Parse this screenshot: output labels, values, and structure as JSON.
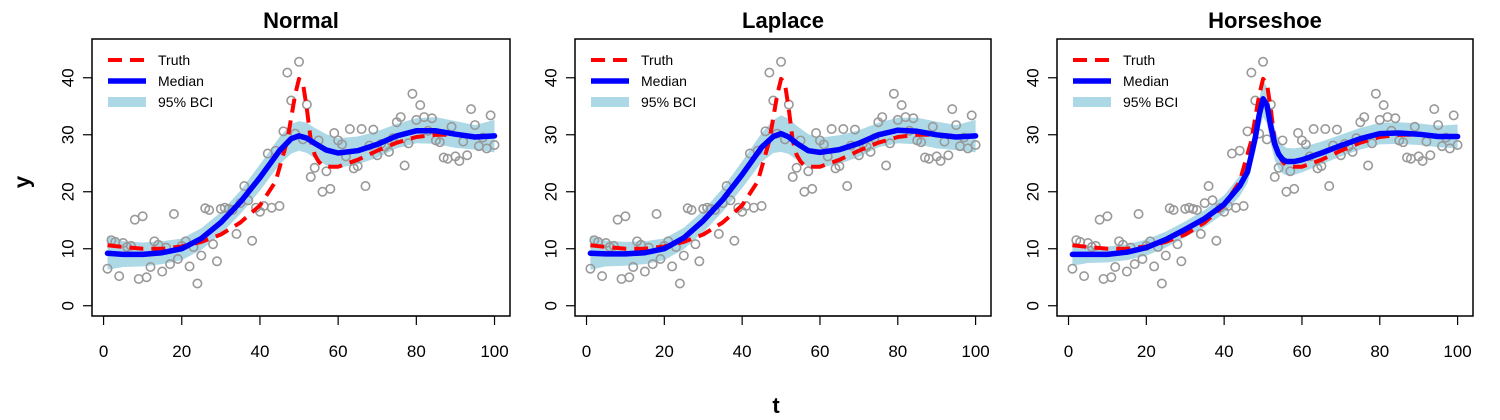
{
  "figure": {
    "xlabel": "t",
    "ylabel": "y",
    "colors": {
      "truth": "#ff0000",
      "median": "#0000ff",
      "band": "#add8e6",
      "points": "#999999",
      "axis": "#000000"
    }
  },
  "chart_data": [
    {
      "type": "line",
      "title": "Normal",
      "xlim": [
        1,
        100
      ],
      "ylim": [
        0,
        45
      ],
      "x_ticks": [
        0,
        20,
        40,
        60,
        80,
        100
      ],
      "y_ticks": [
        0,
        10,
        20,
        30,
        40
      ],
      "legend": {
        "placement": "top-left",
        "entries": [
          "Truth",
          "Median",
          "95% BCI"
        ]
      },
      "truth": {
        "t": [
          1,
          5,
          10,
          15,
          20,
          25,
          30,
          35,
          40,
          44,
          47,
          48,
          49,
          50,
          51,
          52,
          53,
          54,
          55,
          56,
          58,
          60,
          65,
          70,
          75,
          80,
          85,
          90,
          95,
          100
        ],
        "y": [
          10.6,
          10.3,
          10.0,
          10.0,
          10.4,
          11.2,
          12.5,
          14.6,
          17.6,
          21.8,
          29,
          33,
          37,
          39.8,
          39,
          34.5,
          29,
          26.5,
          25.3,
          24.6,
          24.4,
          24.4,
          25.6,
          27.2,
          28.6,
          29.6,
          30.0,
          30.0,
          29.8,
          29.7
        ]
      },
      "median": {
        "t": [
          1,
          5,
          10,
          15,
          20,
          25,
          30,
          35,
          40,
          45,
          48,
          50,
          52,
          54,
          57,
          60,
          65,
          70,
          75,
          80,
          85,
          90,
          95,
          100
        ],
        "y": [
          9.2,
          9.0,
          9.0,
          9.3,
          10.0,
          11.8,
          14.6,
          18.2,
          22.5,
          27.2,
          29.3,
          29.8,
          29.4,
          28.5,
          27.3,
          26.8,
          27.2,
          28.3,
          29.8,
          30.7,
          30.7,
          30.1,
          29.6,
          29.8
        ]
      },
      "band_upper": {
        "t": [
          1,
          5,
          10,
          15,
          20,
          25,
          30,
          35,
          40,
          45,
          48,
          50,
          52,
          54,
          57,
          60,
          65,
          70,
          75,
          80,
          85,
          90,
          95,
          100
        ],
        "y": [
          12.3,
          11.3,
          11.1,
          11.3,
          11.8,
          13.6,
          16.4,
          20.2,
          24.8,
          29.6,
          31.9,
          32.4,
          32.1,
          31.2,
          30.1,
          29.4,
          29.7,
          30.6,
          31.9,
          32.9,
          33.1,
          32.4,
          31.7,
          32.6
        ]
      },
      "band_lower": {
        "t": [
          1,
          5,
          10,
          15,
          20,
          25,
          30,
          35,
          40,
          45,
          48,
          50,
          52,
          54,
          57,
          60,
          65,
          70,
          75,
          80,
          85,
          90,
          95,
          100
        ],
        "y": [
          6.3,
          6.8,
          6.9,
          7.3,
          8.0,
          9.8,
          12.6,
          16.1,
          20.2,
          24.8,
          26.7,
          27.2,
          26.8,
          25.9,
          24.6,
          24.2,
          24.8,
          26.0,
          27.6,
          28.5,
          28.4,
          27.7,
          27.4,
          26.9
        ]
      }
    },
    {
      "type": "line",
      "title": "Laplace",
      "xlim": [
        1,
        100
      ],
      "ylim": [
        0,
        45
      ],
      "x_ticks": [
        0,
        20,
        40,
        60,
        80,
        100
      ],
      "y_ticks": [
        0,
        10,
        20,
        30,
        40
      ],
      "legend": {
        "placement": "top-left",
        "entries": [
          "Truth",
          "Median",
          "95% BCI"
        ]
      },
      "truth": {
        "t": [
          1,
          5,
          10,
          15,
          20,
          25,
          30,
          35,
          40,
          44,
          47,
          48,
          49,
          50,
          51,
          52,
          53,
          54,
          55,
          56,
          58,
          60,
          65,
          70,
          75,
          80,
          85,
          90,
          95,
          100
        ],
        "y": [
          10.6,
          10.3,
          10.0,
          10.0,
          10.4,
          11.2,
          12.5,
          14.6,
          17.6,
          21.8,
          29,
          33,
          37,
          39.8,
          39,
          34.5,
          29,
          26.5,
          25.3,
          24.6,
          24.4,
          24.4,
          25.6,
          27.2,
          28.6,
          29.6,
          30.0,
          30.0,
          29.8,
          29.7
        ]
      },
      "median": {
        "t": [
          1,
          5,
          10,
          15,
          20,
          25,
          30,
          35,
          40,
          45,
          48,
          50,
          52,
          54,
          57,
          60,
          65,
          70,
          75,
          80,
          85,
          90,
          95,
          100
        ],
        "y": [
          9.2,
          9.1,
          9.1,
          9.3,
          10.0,
          11.9,
          14.9,
          18.6,
          23.0,
          27.8,
          29.7,
          30.2,
          29.6,
          28.5,
          27.2,
          26.9,
          27.4,
          28.5,
          30.0,
          30.8,
          30.6,
          30.0,
          29.6,
          29.8
        ]
      },
      "band_upper": {
        "t": [
          1,
          5,
          10,
          15,
          20,
          25,
          30,
          35,
          40,
          45,
          48,
          50,
          52,
          54,
          57,
          60,
          65,
          70,
          75,
          80,
          85,
          90,
          95,
          100
        ],
        "y": [
          12.3,
          11.4,
          11.2,
          11.3,
          11.8,
          13.7,
          16.7,
          20.6,
          25.3,
          30.3,
          32.6,
          33.4,
          32.8,
          31.6,
          30.1,
          29.5,
          29.9,
          30.8,
          32.1,
          33.0,
          33.0,
          32.3,
          31.7,
          32.6
        ]
      },
      "band_lower": {
        "t": [
          1,
          5,
          10,
          15,
          20,
          25,
          30,
          35,
          40,
          45,
          48,
          50,
          52,
          54,
          57,
          60,
          65,
          70,
          75,
          80,
          85,
          90,
          95,
          100
        ],
        "y": [
          6.3,
          6.9,
          7.0,
          7.3,
          8.0,
          9.9,
          12.9,
          16.5,
          20.6,
          25.2,
          26.8,
          27.0,
          26.6,
          25.6,
          24.4,
          24.2,
          24.9,
          26.1,
          27.8,
          28.5,
          28.3,
          27.6,
          27.3,
          26.9
        ]
      }
    },
    {
      "type": "line",
      "title": "Horseshoe",
      "xlim": [
        1,
        100
      ],
      "ylim": [
        0,
        45
      ],
      "x_ticks": [
        0,
        20,
        40,
        60,
        80,
        100
      ],
      "y_ticks": [
        0,
        10,
        20,
        30,
        40
      ],
      "legend": {
        "placement": "top-left",
        "entries": [
          "Truth",
          "Median",
          "95% BCI"
        ]
      },
      "truth": {
        "t": [
          1,
          5,
          10,
          15,
          20,
          25,
          30,
          35,
          40,
          44,
          47,
          48,
          49,
          50,
          51,
          52,
          53,
          54,
          55,
          56,
          58,
          60,
          65,
          70,
          75,
          80,
          85,
          90,
          95,
          100
        ],
        "y": [
          10.6,
          10.3,
          10.0,
          10.0,
          10.4,
          11.2,
          12.5,
          14.6,
          17.6,
          21.8,
          29,
          33,
          37,
          39.8,
          39,
          34.5,
          29,
          26.5,
          25.3,
          24.6,
          24.4,
          24.4,
          25.6,
          27.2,
          28.6,
          29.6,
          30.0,
          30.0,
          29.8,
          29.7
        ]
      },
      "median": {
        "t": [
          1,
          5,
          10,
          15,
          20,
          25,
          30,
          35,
          40,
          44,
          46,
          48,
          49,
          50,
          51,
          52,
          53,
          54,
          55,
          56,
          58,
          60,
          65,
          70,
          75,
          80,
          85,
          90,
          95,
          100
        ],
        "y": [
          9.0,
          9.0,
          9.0,
          9.4,
          10.2,
          11.6,
          13.4,
          15.3,
          17.8,
          21.0,
          23.5,
          29.5,
          33.5,
          36.3,
          35.2,
          31.5,
          28.4,
          26.6,
          25.7,
          25.3,
          25.3,
          25.6,
          26.8,
          28.1,
          29.3,
          30.2,
          30.3,
          30.1,
          29.7,
          29.7
        ]
      },
      "band_upper": {
        "t": [
          1,
          5,
          10,
          15,
          20,
          25,
          30,
          35,
          40,
          44,
          46,
          48,
          49,
          50,
          51,
          52,
          53,
          54,
          55,
          56,
          58,
          60,
          65,
          70,
          75,
          80,
          85,
          90,
          95,
          100
        ],
        "y": [
          11.0,
          10.5,
          10.4,
          10.8,
          11.6,
          13.0,
          14.8,
          16.8,
          19.4,
          22.8,
          25.5,
          32.0,
          36.2,
          39.5,
          38.4,
          34.6,
          31.2,
          29.2,
          28.2,
          27.7,
          27.6,
          27.8,
          28.8,
          30.0,
          31.2,
          32.1,
          32.2,
          32.0,
          31.6,
          31.8
        ]
      },
      "band_lower": {
        "t": [
          1,
          5,
          10,
          15,
          20,
          25,
          30,
          35,
          40,
          44,
          46,
          48,
          49,
          50,
          51,
          52,
          53,
          54,
          55,
          56,
          58,
          60,
          65,
          70,
          75,
          80,
          85,
          90,
          95,
          100
        ],
        "y": [
          7.0,
          7.5,
          7.6,
          8.0,
          8.8,
          10.2,
          12.0,
          13.8,
          16.2,
          19.2,
          21.5,
          27.0,
          30.8,
          33.1,
          32.0,
          28.4,
          25.6,
          24.0,
          23.2,
          22.9,
          23.0,
          23.4,
          24.8,
          26.2,
          27.4,
          28.3,
          28.4,
          28.2,
          27.8,
          27.6
        ]
      }
    }
  ],
  "observations": {
    "t": [
      1,
      2,
      3,
      4,
      5,
      6,
      7,
      8,
      9,
      10,
      11,
      12,
      13,
      14,
      15,
      16,
      17,
      18,
      19,
      20,
      21,
      22,
      23,
      24,
      25,
      26,
      27,
      28,
      29,
      30,
      31,
      32,
      33,
      34,
      35,
      36,
      37,
      38,
      39,
      40,
      41,
      42,
      43,
      44,
      45,
      46,
      47,
      48,
      49,
      50,
      51,
      52,
      53,
      54,
      55,
      56,
      57,
      58,
      59,
      60,
      61,
      62,
      63,
      64,
      65,
      66,
      67,
      68,
      69,
      70,
      71,
      72,
      73,
      74,
      75,
      76,
      77,
      78,
      79,
      80,
      81,
      82,
      83,
      84,
      85,
      86,
      87,
      88,
      89,
      90,
      91,
      92,
      93,
      94,
      95,
      96,
      97,
      98,
      99,
      100
    ],
    "y": [
      6.5,
      11.5,
      11.2,
      5.2,
      11.0,
      10.3,
      10.5,
      15.1,
      4.7,
      15.7,
      5.0,
      6.8,
      11.3,
      10.7,
      6.0,
      10.2,
      7.3,
      16.1,
      8.2,
      10.5,
      11.3,
      6.9,
      10.3,
      3.9,
      8.8,
      17.1,
      16.8,
      10.8,
      7.8,
      17.0,
      17.2,
      17.0,
      16.8,
      12.6,
      18.0,
      21.0,
      18.5,
      11.4,
      17.2,
      16.5,
      17.5,
      26.7,
      17.2,
      27.2,
      17.5,
      30.6,
      40.9,
      36.0,
      30.2,
      42.8,
      29.2,
      35.3,
      22.6,
      24.2,
      29.0,
      20.0,
      23.6,
      20.5,
      30.3,
      29.0,
      28.3,
      26.2,
      31.0,
      24.1,
      24.5,
      31.0,
      21.0,
      28.1,
      30.9,
      26.4,
      28.4,
      27.9,
      27.0,
      29.4,
      32.2,
      33.1,
      24.6,
      28.5,
      37.2,
      32.6,
      35.2,
      33.1,
      30.7,
      32.9,
      29.0,
      28.7,
      26.0,
      25.8,
      31.4,
      26.2,
      25.4,
      28.8,
      26.4,
      34.5,
      31.7,
      28.0,
      29.5,
      27.6,
      33.4,
      28.2
    ]
  }
}
